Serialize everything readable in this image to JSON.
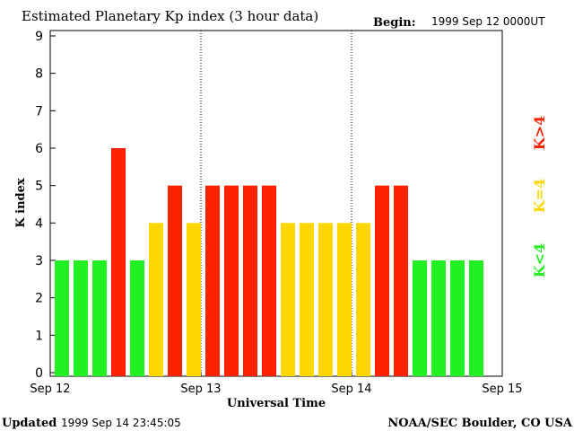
{
  "header": {
    "title": "Estimated Planetary Kp index (3 hour data)",
    "begin_label": "Begin:",
    "begin_value": "1999 Sep 12 0000UT"
  },
  "footer": {
    "updated_label": "Updated",
    "updated_value": "1999 Sep 14 23:45:05",
    "credit": "NOAA/SEC Boulder, CO USA"
  },
  "legend": {
    "high": "K>4",
    "mid": "K=4",
    "low": "K<4"
  },
  "colors": {
    "low": "#22f022",
    "mid": "#ffd700",
    "high": "#ff2200",
    "axis": "#000000"
  },
  "chart_data": {
    "type": "bar",
    "xlabel": "Universal Time",
    "ylabel": "K index",
    "ylim": [
      0,
      9
    ],
    "yticks": [
      0,
      1,
      2,
      3,
      4,
      5,
      6,
      7,
      8,
      9
    ],
    "xticks": [
      "Sep 12",
      "Sep 13",
      "Sep 14",
      "Sep 15"
    ],
    "day_separators": [
      "Sep 13",
      "Sep 14"
    ],
    "bars_per_day": 8,
    "values": [
      3,
      3,
      3,
      6,
      3,
      4,
      5,
      4,
      5,
      5,
      5,
      5,
      4,
      4,
      4,
      4,
      4,
      5,
      5,
      3,
      3,
      3,
      3
    ]
  }
}
